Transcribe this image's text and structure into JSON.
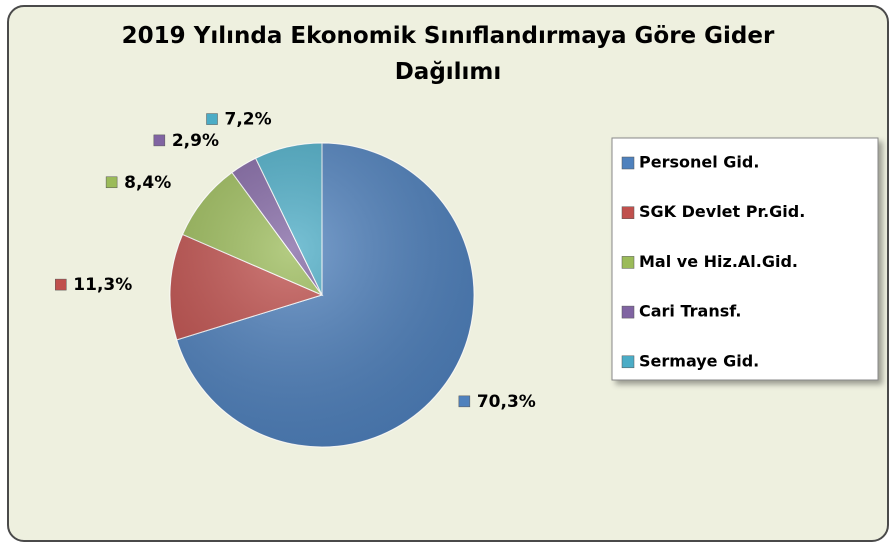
{
  "chart_data": {
    "type": "pie",
    "title": "2019 Yılında Ekonomik Sınıflandırmaya Göre Gider Dağılımı",
    "categories": [
      "Personel Gid.",
      "SGK Devlet Pr.Gid.",
      "Mal ve Hiz.Al.Gid.",
      "Cari Transf.",
      "Sermaye Gid."
    ],
    "values": [
      70.3,
      11.3,
      8.4,
      2.9,
      7.2
    ],
    "value_labels": [
      "70,3%",
      "11,3%",
      "8,4%",
      "2,9%",
      "7,2%"
    ],
    "colors": [
      "#4f81bd",
      "#c0504d",
      "#9bbb59",
      "#8064a2",
      "#4bacc6"
    ],
    "legend": "right"
  }
}
